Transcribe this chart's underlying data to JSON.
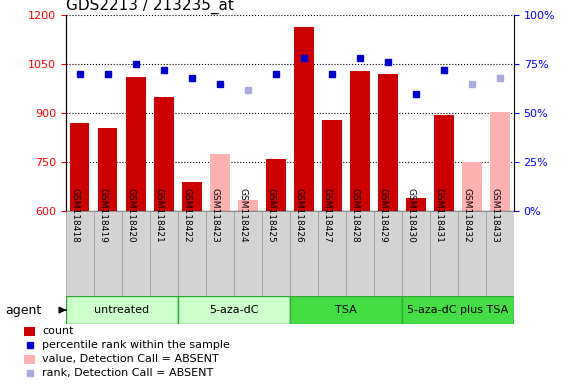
{
  "title": "GDS2213 / 213235_at",
  "samples": [
    "GSM118418",
    "GSM118419",
    "GSM118420",
    "GSM118421",
    "GSM118422",
    "GSM118423",
    "GSM118424",
    "GSM118425",
    "GSM118426",
    "GSM118427",
    "GSM118428",
    "GSM118429",
    "GSM118430",
    "GSM118431",
    "GSM118432",
    "GSM118433"
  ],
  "bar_values": [
    870,
    855,
    1010,
    950,
    690,
    775,
    635,
    760,
    1165,
    880,
    1030,
    1020,
    640,
    895,
    750,
    905
  ],
  "bar_absent": [
    false,
    false,
    false,
    false,
    false,
    true,
    true,
    false,
    false,
    false,
    false,
    false,
    false,
    false,
    true,
    true
  ],
  "dot_values": [
    70,
    70,
    75,
    72,
    68,
    65,
    62,
    70,
    78,
    70,
    78,
    76,
    60,
    72,
    65,
    68
  ],
  "dot_absent": [
    false,
    false,
    false,
    false,
    false,
    false,
    true,
    false,
    false,
    false,
    false,
    false,
    false,
    false,
    true,
    true
  ],
  "ylim_left": [
    600,
    1200
  ],
  "ylim_right": [
    0,
    100
  ],
  "yticks_left": [
    600,
    750,
    900,
    1050,
    1200
  ],
  "yticks_right": [
    0,
    25,
    50,
    75,
    100
  ],
  "bar_color_present": "#cc0000",
  "bar_color_absent": "#ffb0b0",
  "dot_color_present": "#0000cc",
  "dot_color_absent": "#aaaadd",
  "group_data": [
    {
      "start": 0,
      "end": 3,
      "label": "untreated",
      "color": "#ccffcc"
    },
    {
      "start": 4,
      "end": 7,
      "label": "5-aza-dC",
      "color": "#ccffcc"
    },
    {
      "start": 8,
      "end": 11,
      "label": "TSA",
      "color": "#44dd44"
    },
    {
      "start": 12,
      "end": 15,
      "label": "5-aza-dC plus TSA",
      "color": "#44dd44"
    }
  ],
  "legend_items": [
    {
      "label": "count",
      "color": "#cc0000",
      "type": "bar"
    },
    {
      "label": "percentile rank within the sample",
      "color": "#0000cc",
      "type": "dot"
    },
    {
      "label": "value, Detection Call = ABSENT",
      "color": "#ffb0b0",
      "type": "bar"
    },
    {
      "label": "rank, Detection Call = ABSENT",
      "color": "#aaaadd",
      "type": "dot"
    }
  ],
  "box_color": "#d3d3d3",
  "box_edge_color": "#999999",
  "group_edge_color": "#33aa33",
  "agent_label": "agent",
  "agent_fontsize": 9,
  "title_fontsize": 11,
  "tick_fontsize": 8,
  "sample_fontsize": 6.5,
  "group_fontsize": 8,
  "legend_fontsize": 8
}
